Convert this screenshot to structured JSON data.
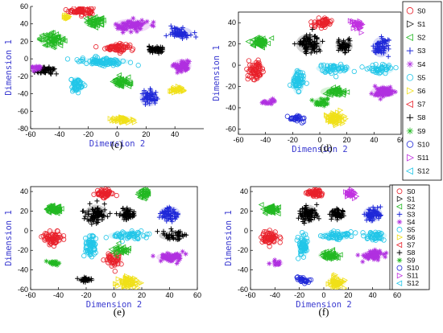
{
  "figure": {
    "panels": [
      {
        "id": "c",
        "label": "(c)"
      },
      {
        "id": "d",
        "label": "(d)"
      },
      {
        "id": "e",
        "label": "(e)"
      },
      {
        "id": "f",
        "label": "(f)"
      }
    ]
  },
  "colors": {
    "S0": "#e8202a",
    "S1": "#202020",
    "S2": "#22b822",
    "S3": "#1f28d8",
    "S4": "#b030e0",
    "S5": "#22c6e8",
    "S6": "#f0e018",
    "S7": "#e8202a",
    "S8": "#000000",
    "S9": "#22b822",
    "S10": "#1f28d8",
    "S11": "#c030e0",
    "S12": "#22c6e8"
  },
  "legend": {
    "entries": [
      {
        "key": "S0",
        "label": "S0",
        "marker": "circle"
      },
      {
        "key": "S1",
        "label": "S1",
        "marker": "tri-right"
      },
      {
        "key": "S2",
        "label": "S2",
        "marker": "tri-left"
      },
      {
        "key": "S3",
        "label": "S3",
        "marker": "plus"
      },
      {
        "key": "S4",
        "label": "S4",
        "marker": "star"
      },
      {
        "key": "S5",
        "label": "S5",
        "marker": "circle"
      },
      {
        "key": "S6",
        "label": "S6",
        "marker": "tri-right"
      },
      {
        "key": "S7",
        "label": "S7",
        "marker": "tri-left"
      },
      {
        "key": "S8",
        "label": "S8",
        "marker": "plus"
      },
      {
        "key": "S9",
        "label": "S9",
        "marker": "star"
      },
      {
        "key": "S10",
        "label": "S10",
        "marker": "circle"
      },
      {
        "key": "S11",
        "label": "S11",
        "marker": "tri-right"
      },
      {
        "key": "S12",
        "label": "S12",
        "marker": "tri-left"
      }
    ]
  },
  "chart_data": [
    {
      "panel": "c",
      "type": "scatter",
      "xlabel": "Dimension 2",
      "ylabel": "Dimension 1",
      "xlim": [
        -60,
        60
      ],
      "ylim": [
        -80,
        60
      ],
      "xticks": [
        -60,
        -40,
        -20,
        0,
        20,
        40
      ],
      "yticks": [
        -80,
        -60,
        -40,
        -20,
        0,
        20,
        40,
        60
      ],
      "clusters": [
        {
          "series": "S0",
          "x": -25,
          "y": 55,
          "n": 70,
          "spread": [
            6,
            3
          ]
        },
        {
          "series": "S0",
          "x": 0,
          "y": 13,
          "n": 60,
          "spread": [
            6,
            3
          ]
        },
        {
          "series": "S2",
          "x": -45,
          "y": 22,
          "n": 60,
          "spread": [
            6,
            5
          ]
        },
        {
          "series": "S2",
          "x": -15,
          "y": 42,
          "n": 50,
          "spread": [
            5,
            4
          ]
        },
        {
          "series": "S2",
          "x": 3,
          "y": -27,
          "n": 50,
          "spread": [
            4,
            4
          ]
        },
        {
          "series": "S3",
          "x": 44,
          "y": 30,
          "n": 60,
          "spread": [
            5,
            4
          ]
        },
        {
          "series": "S3",
          "x": 22,
          "y": -45,
          "n": 50,
          "spread": [
            4,
            6
          ]
        },
        {
          "series": "S4",
          "x": 10,
          "y": 38,
          "n": 70,
          "spread": [
            8,
            5
          ]
        },
        {
          "series": "S4",
          "x": 45,
          "y": -8,
          "n": 50,
          "spread": [
            4,
            5
          ]
        },
        {
          "series": "S5",
          "x": -10,
          "y": -3,
          "n": 90,
          "spread": [
            12,
            3
          ]
        },
        {
          "series": "S5",
          "x": -28,
          "y": -30,
          "n": 50,
          "spread": [
            3,
            6
          ]
        },
        {
          "series": "S6",
          "x": -35,
          "y": 48,
          "n": 15,
          "spread": [
            2,
            2
          ]
        },
        {
          "series": "S6",
          "x": 4,
          "y": -70,
          "n": 40,
          "spread": [
            6,
            3
          ]
        },
        {
          "series": "S6",
          "x": 42,
          "y": -36,
          "n": 30,
          "spread": [
            4,
            2
          ]
        },
        {
          "series": "S8",
          "x": 27,
          "y": 10,
          "n": 50,
          "spread": [
            4,
            3
          ]
        },
        {
          "series": "S8",
          "x": -50,
          "y": -13,
          "n": 50,
          "spread": [
            5,
            3
          ]
        },
        {
          "series": "S4",
          "x": -55,
          "y": -10,
          "n": 15,
          "spread": [
            3,
            2
          ]
        }
      ]
    },
    {
      "panel": "d",
      "type": "scatter",
      "xlabel": "Dimension 2",
      "ylabel": "Dimension 1",
      "xlim": [
        -60,
        60
      ],
      "ylim": [
        -65,
        50
      ],
      "xticks": [
        -60,
        -40,
        -20,
        0,
        20,
        40,
        60
      ],
      "yticks": [
        -60,
        -40,
        -20,
        0,
        20,
        40
      ],
      "clusters": [
        {
          "series": "S0",
          "x": -47,
          "y": -5,
          "n": 60,
          "spread": [
            4,
            6
          ]
        },
        {
          "series": "S0",
          "x": 2,
          "y": 40,
          "n": 50,
          "spread": [
            5,
            3
          ]
        },
        {
          "series": "S11",
          "x": 28,
          "y": 38,
          "n": 30,
          "spread": [
            3,
            3
          ]
        },
        {
          "series": "S2",
          "x": -44,
          "y": 22,
          "n": 60,
          "spread": [
            4,
            3
          ]
        },
        {
          "series": "S2",
          "x": 10,
          "y": -25,
          "n": 50,
          "spread": [
            6,
            3
          ]
        },
        {
          "series": "S3",
          "x": 45,
          "y": 17,
          "n": 60,
          "spread": [
            4,
            6
          ]
        },
        {
          "series": "S8",
          "x": -8,
          "y": 20,
          "n": 90,
          "spread": [
            6,
            6
          ]
        },
        {
          "series": "S8",
          "x": 18,
          "y": 18,
          "n": 50,
          "spread": [
            4,
            4
          ]
        },
        {
          "series": "S5",
          "x": -16,
          "y": -15,
          "n": 60,
          "spread": [
            3,
            8
          ]
        },
        {
          "series": "S5",
          "x": 10,
          "y": -3,
          "n": 50,
          "spread": [
            8,
            3
          ]
        },
        {
          "series": "S5",
          "x": 45,
          "y": -4,
          "n": 40,
          "spread": [
            6,
            3
          ]
        },
        {
          "series": "S4",
          "x": 47,
          "y": -25,
          "n": 60,
          "spread": [
            6,
            3
          ]
        },
        {
          "series": "S4",
          "x": -38,
          "y": -35,
          "n": 15,
          "spread": [
            3,
            2
          ]
        },
        {
          "series": "S6",
          "x": 12,
          "y": -50,
          "n": 60,
          "spread": [
            5,
            4
          ]
        },
        {
          "series": "S10",
          "x": -17,
          "y": -50,
          "n": 25,
          "spread": [
            4,
            2
          ]
        },
        {
          "series": "S9",
          "x": 1,
          "y": -35,
          "n": 25,
          "spread": [
            4,
            3
          ]
        }
      ]
    },
    {
      "panel": "e",
      "type": "scatter",
      "xlabel": "Dimension 2",
      "ylabel": "Dimension 1",
      "xlim": [
        -60,
        60
      ],
      "ylim": [
        -60,
        45
      ],
      "xticks": [
        -60,
        -40,
        -20,
        0,
        20,
        40,
        60
      ],
      "yticks": [
        -60,
        -40,
        -20,
        0,
        20,
        40
      ],
      "clusters": [
        {
          "series": "S0",
          "x": -44,
          "y": -7,
          "n": 60,
          "spread": [
            5,
            5
          ]
        },
        {
          "series": "S0",
          "x": 0,
          "y": -30,
          "n": 40,
          "spread": [
            4,
            5
          ]
        },
        {
          "series": "S0",
          "x": -7,
          "y": 38,
          "n": 50,
          "spread": [
            5,
            3
          ]
        },
        {
          "series": "S2",
          "x": -43,
          "y": 22,
          "n": 60,
          "spread": [
            4,
            3
          ]
        },
        {
          "series": "S2",
          "x": 22,
          "y": 38,
          "n": 30,
          "spread": [
            3,
            4
          ]
        },
        {
          "series": "S2",
          "x": 5,
          "y": -20,
          "n": 30,
          "spread": [
            4,
            3
          ]
        },
        {
          "series": "S9",
          "x": -43,
          "y": -33,
          "n": 15,
          "spread": [
            3,
            2
          ]
        },
        {
          "series": "S3",
          "x": 40,
          "y": 17,
          "n": 60,
          "spread": [
            5,
            5
          ]
        },
        {
          "series": "S8",
          "x": -13,
          "y": 17,
          "n": 80,
          "spread": [
            5,
            6
          ]
        },
        {
          "series": "S8",
          "x": 10,
          "y": 17,
          "n": 50,
          "spread": [
            4,
            4
          ]
        },
        {
          "series": "S8",
          "x": 42,
          "y": -5,
          "n": 40,
          "spread": [
            6,
            3
          ]
        },
        {
          "series": "S8",
          "x": -20,
          "y": -50,
          "n": 25,
          "spread": [
            4,
            2
          ]
        },
        {
          "series": "S5",
          "x": -17,
          "y": -15,
          "n": 60,
          "spread": [
            3,
            8
          ]
        },
        {
          "series": "S5",
          "x": 10,
          "y": -5,
          "n": 50,
          "spread": [
            9,
            3
          ]
        },
        {
          "series": "S4",
          "x": 40,
          "y": -27,
          "n": 60,
          "spread": [
            6,
            3
          ]
        },
        {
          "series": "S6",
          "x": 10,
          "y": -53,
          "n": 60,
          "spread": [
            5,
            4
          ]
        }
      ]
    },
    {
      "panel": "f",
      "type": "scatter",
      "xlabel": "Dimension 2",
      "ylabel": "Dimension 1",
      "xlim": [
        -60,
        60
      ],
      "ylim": [
        -60,
        45
      ],
      "xticks": [
        -60,
        -40,
        -20,
        0,
        20,
        40,
        60
      ],
      "yticks": [
        -60,
        -40,
        -20,
        0,
        20,
        40
      ],
      "clusters": [
        {
          "series": "S0",
          "x": -44,
          "y": -7,
          "n": 60,
          "spread": [
            5,
            5
          ]
        },
        {
          "series": "S0",
          "x": -7,
          "y": 38,
          "n": 50,
          "spread": [
            5,
            3
          ]
        },
        {
          "series": "S11",
          "x": 22,
          "y": 38,
          "n": 30,
          "spread": [
            3,
            3
          ]
        },
        {
          "series": "S2",
          "x": -43,
          "y": 22,
          "n": 60,
          "spread": [
            4,
            3
          ]
        },
        {
          "series": "S2",
          "x": 5,
          "y": -25,
          "n": 50,
          "spread": [
            6,
            3
          ]
        },
        {
          "series": "S3",
          "x": 40,
          "y": 17,
          "n": 60,
          "spread": [
            5,
            5
          ]
        },
        {
          "series": "S8",
          "x": -13,
          "y": 17,
          "n": 80,
          "spread": [
            5,
            6
          ]
        },
        {
          "series": "S8",
          "x": 10,
          "y": 17,
          "n": 50,
          "spread": [
            4,
            4
          ]
        },
        {
          "series": "S5",
          "x": -17,
          "y": -15,
          "n": 60,
          "spread": [
            3,
            8
          ]
        },
        {
          "series": "S5",
          "x": 10,
          "y": -5,
          "n": 50,
          "spread": [
            9,
            3
          ]
        },
        {
          "series": "S5",
          "x": 42,
          "y": -5,
          "n": 40,
          "spread": [
            6,
            3
          ]
        },
        {
          "series": "S4",
          "x": 40,
          "y": -25,
          "n": 60,
          "spread": [
            6,
            3
          ]
        },
        {
          "series": "S4",
          "x": -38,
          "y": -33,
          "n": 15,
          "spread": [
            3,
            2
          ]
        },
        {
          "series": "S6",
          "x": 10,
          "y": -53,
          "n": 60,
          "spread": [
            5,
            4
          ]
        },
        {
          "series": "S10",
          "x": -17,
          "y": -50,
          "n": 25,
          "spread": [
            4,
            2
          ]
        }
      ]
    }
  ]
}
